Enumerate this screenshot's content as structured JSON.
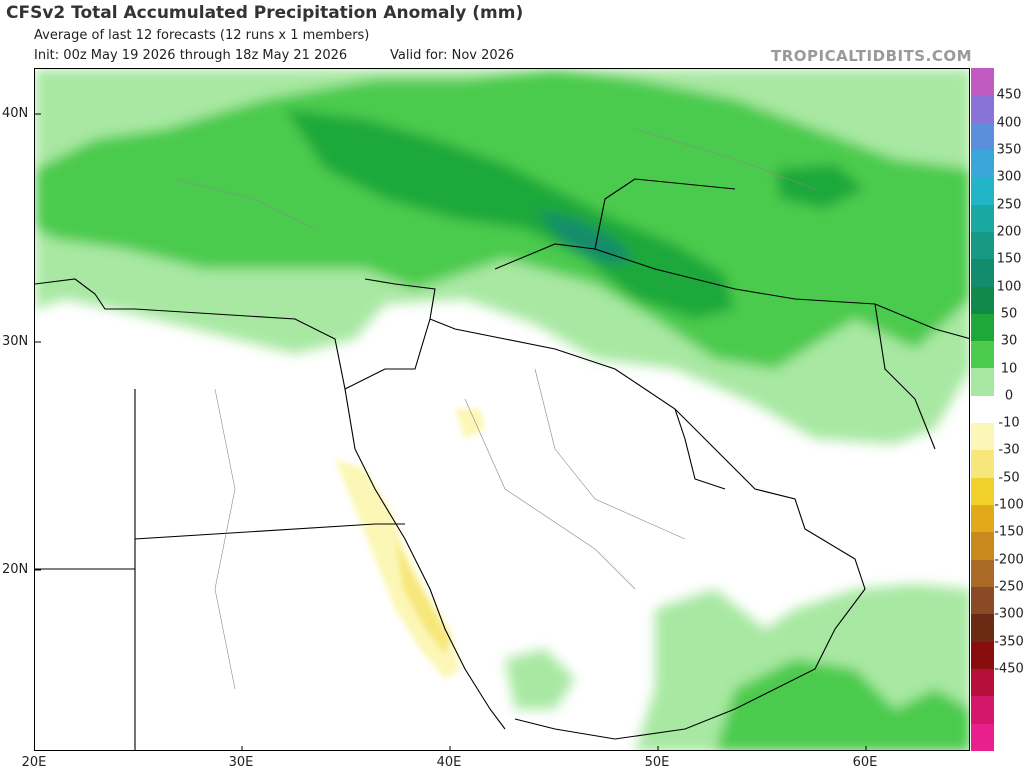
{
  "header": {
    "title": "CFSv2 Total Accumulated Precipitation Anomaly (mm)",
    "subtitle": "Average of last 12 forecasts (12 runs x 1 members)",
    "init": "Init: 00z May 19 2026 through 18z May 21 2026",
    "valid": "Valid for: Nov 2026",
    "brand": "TROPICALTIDBITS.COM"
  },
  "map": {
    "lat_labels": [
      "40N",
      "30N",
      "20N"
    ],
    "lon_labels": [
      "20E",
      "30E",
      "40E",
      "50E",
      "60E"
    ],
    "extent": {
      "lon_min": 20,
      "lon_max": 65,
      "lat_min": 12,
      "lat_max": 42
    }
  },
  "colorbar": {
    "labels": [
      "450",
      "400",
      "350",
      "300",
      "250",
      "200",
      "150",
      "100",
      "50",
      "30",
      "10",
      "0",
      "-10",
      "-30",
      "-50",
      "-100",
      "-150",
      "-200",
      "-250",
      "-300",
      "-350",
      "-450"
    ],
    "colors": [
      "#c15bc2",
      "#8a73d6",
      "#5b8fdc",
      "#3aa6da",
      "#22b5c8",
      "#1aa8a2",
      "#169a86",
      "#128c6c",
      "#0f8a48",
      "#1ea83a",
      "#4ccb4d",
      "#a8e8a2",
      "#ffffff",
      "#fcf7b6",
      "#f7e77a",
      "#f2d12c",
      "#e2aa1a",
      "#c88a1c",
      "#aa6a26",
      "#8a4b24",
      "#6a2a14",
      "#8a0d0d",
      "#b4103a",
      "#d41768",
      "#e8208e"
    ]
  }
}
